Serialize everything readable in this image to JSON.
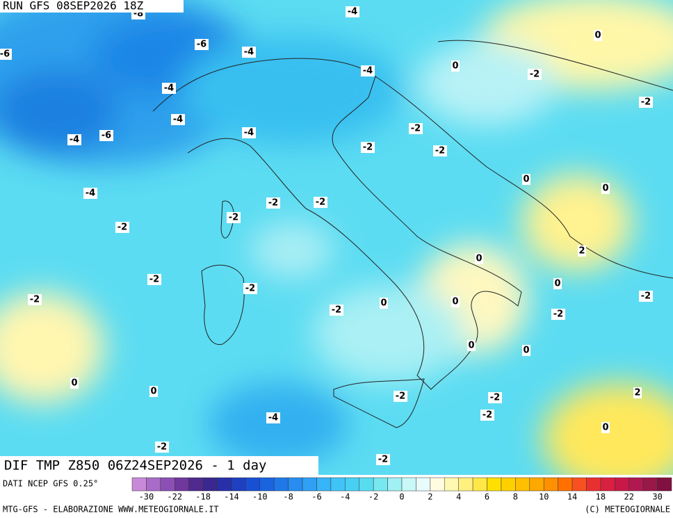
{
  "header": {
    "run": "RUN GFS 08SEP2026 18Z",
    "field": "DIF TMP Z850 06Z24SEP2026 - 1 day",
    "source": "DATI NCEP GFS 0.25°"
  },
  "contour_labels": [
    "-8",
    "-4",
    "-6",
    "-6",
    "-4",
    "0",
    "0",
    "-2",
    "-4",
    "-4",
    "-2",
    "-4",
    "-2",
    "-4",
    "-4",
    "-6",
    "-2",
    "-2",
    "0",
    "0",
    "-4",
    "-2",
    "-2",
    "-2",
    "-2",
    "2",
    "0",
    "-2",
    "-2",
    "0",
    "-2",
    "-2",
    "0",
    "0",
    "-2",
    "-2",
    "0",
    "0",
    "0",
    "0",
    "2",
    "-2",
    "-2",
    "-2",
    "-4",
    "0",
    "-2",
    "-2"
  ],
  "colorbar": {
    "colors": [
      "#c88ad8",
      "#a86cc8",
      "#8c50b4",
      "#6e389c",
      "#502a8c",
      "#3a2890",
      "#2830a8",
      "#1e40c0",
      "#1850d4",
      "#1a64e0",
      "#2078e8",
      "#288cf0",
      "#30a0f4",
      "#38b4f8",
      "#40c4f8",
      "#48d0f4",
      "#58dcf0",
      "#78e8f0",
      "#a0f0f4",
      "#c8f8f8",
      "#e8fcfc",
      "#fffce0",
      "#fff8b0",
      "#fff080",
      "#ffe848",
      "#ffe000",
      "#ffd000",
      "#ffc000",
      "#ffa800",
      "#ff9000",
      "#ff7000",
      "#f85020",
      "#e83030",
      "#d82040",
      "#c81848",
      "#b01850",
      "#981848",
      "#801040"
    ],
    "labels": [
      -30,
      -22,
      -18,
      -14,
      -10,
      -8,
      -6,
      -4,
      -2,
      0,
      2,
      4,
      6,
      8,
      10,
      14,
      18,
      22,
      30
    ]
  },
  "footer": {
    "left": "MTG-GFS - ELABORAZIONE WWW.METEOGIORNALE.IT",
    "right": "(C) METEOGIORNALE"
  }
}
